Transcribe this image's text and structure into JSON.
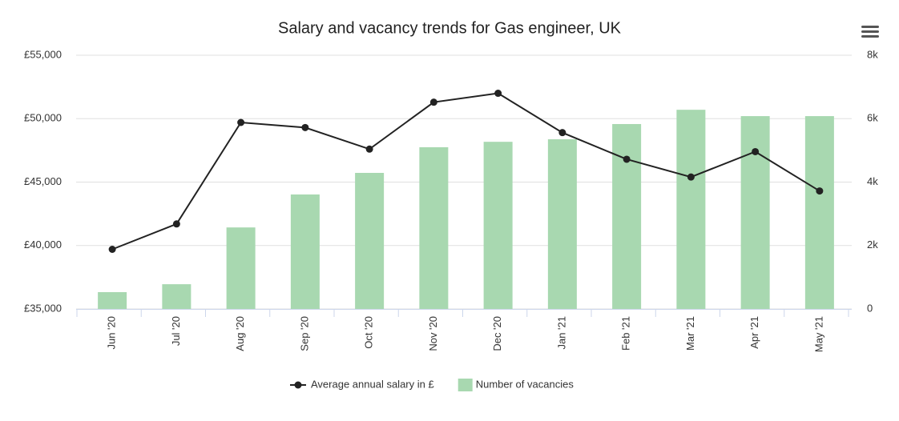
{
  "chart_data": {
    "type": "combo",
    "title": "Salary and vacancy trends for Gas engineer, UK",
    "categories": [
      "Jun '20",
      "Jul '20",
      "Aug '20",
      "Sep '20",
      "Oct '20",
      "Nov '20",
      "Dec '20",
      "Jan '21",
      "Feb '21",
      "Mar '21",
      "Apr '21",
      "May '21"
    ],
    "series": [
      {
        "name": "Number of vacancies",
        "type": "bar",
        "axis": "y2",
        "color": "#a8d8b0",
        "values": [
          530,
          780,
          2570,
          3610,
          4290,
          5100,
          5270,
          5350,
          5830,
          6280,
          6080,
          6080
        ]
      },
      {
        "name": "Average annual salary in £",
        "type": "line",
        "color": "#222222",
        "values": [
          39700,
          41700,
          49700,
          49300,
          47600,
          51300,
          52000,
          48900,
          46800,
          45400,
          47400,
          44300
        ]
      }
    ],
    "ylim": [
      35000,
      55000
    ],
    "yticks": [
      {
        "value": 35000,
        "label": "£35,000"
      },
      {
        "value": 40000,
        "label": "£40,000"
      },
      {
        "value": 45000,
        "label": "£45,000"
      },
      {
        "value": 50000,
        "label": "£50,000"
      },
      {
        "value": 55000,
        "label": "£55,000"
      }
    ],
    "y2lim": [
      0,
      8000
    ],
    "y2ticks": [
      0,
      {
        "value": 2000,
        "label": "2k"
      },
      {
        "value": 4000,
        "label": "4k"
      },
      {
        "value": 6000,
        "label": "6k"
      },
      {
        "value": 8000,
        "label": "8k"
      }
    ],
    "y2_color": "#3a9a3a",
    "grid": true
  }
}
